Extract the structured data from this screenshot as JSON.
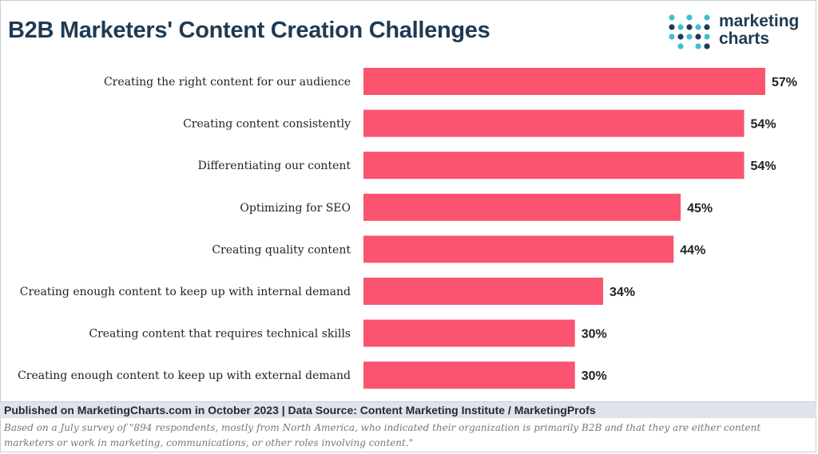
{
  "header": {
    "title": "B2B Marketers' Content Creation Challenges",
    "logo": {
      "line1": "marketing",
      "line2": "charts",
      "colors": [
        "#3cc0d0",
        "#1f3a52"
      ]
    }
  },
  "chart_data": {
    "type": "bar",
    "orientation": "horizontal",
    "categories": [
      "Creating the right content for our audience",
      "Creating content consistently",
      "Differentiating our content",
      "Optimizing for SEO",
      "Creating quality content",
      "Creating enough content to keep up with internal demand",
      "Creating content that requires technical skills",
      "Creating enough content to keep up with external demand"
    ],
    "values": [
      57,
      54,
      54,
      45,
      44,
      34,
      30,
      30
    ],
    "value_labels": [
      "57%",
      "54%",
      "54%",
      "45%",
      "44%",
      "34%",
      "30%",
      "30%"
    ],
    "unit": "%",
    "bar_color": "#fa5470",
    "grid": false,
    "xlim": [
      0,
      57
    ]
  },
  "footer": {
    "published": "Published on MarketingCharts.com in October 2023 | Data Source: Content Marketing Institute / MarketingProfs",
    "note": "Based on a July survey of \"894 respondents, mostly from North America, who indicated their organization is primarily B2B and that they are either content marketers or work in marketing, communications, or other roles involving content.\""
  }
}
